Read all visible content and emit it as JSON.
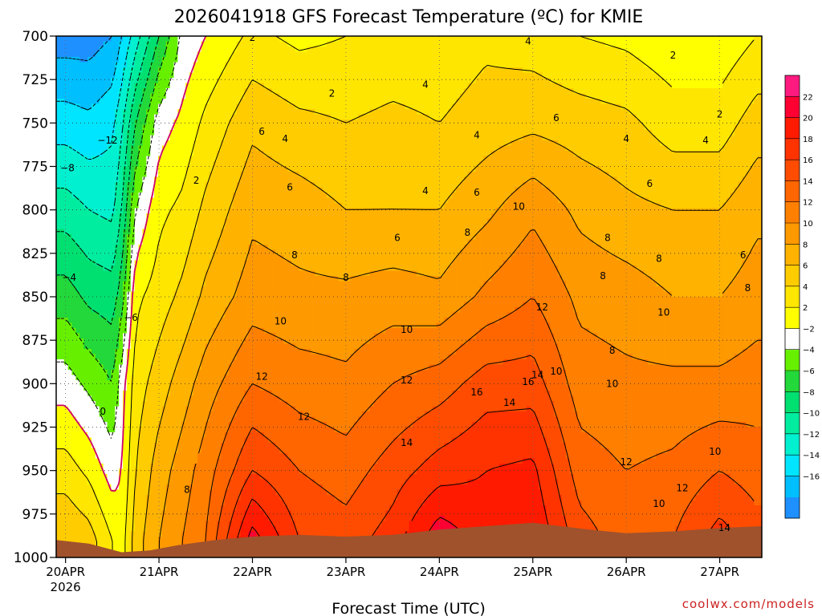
{
  "chart_data": {
    "type": "heatmap",
    "title": "2026041918 GFS Forecast Temperature (ºC) for KMIE",
    "xlabel": "Forecast Time (UTC)",
    "ylabel": "",
    "credit": "coolwx.com/models",
    "y_axis": {
      "unit": "hPa",
      "inverted": true,
      "range": [
        700,
        1000
      ],
      "ticks": [
        "700",
        "725",
        "750",
        "775",
        "800",
        "825",
        "850",
        "875",
        "900",
        "925",
        "950",
        "975",
        "1000"
      ]
    },
    "x_axis": {
      "ticks": [
        "20APR",
        "21APR",
        "22APR",
        "23APR",
        "24APR",
        "25APR",
        "26APR",
        "27APR"
      ],
      "start_year": "2026",
      "range_days": [
        -0.1,
        7.45
      ]
    },
    "colorbar": {
      "levels": [
        -18,
        -16,
        -14,
        -12,
        -10,
        -8,
        -6,
        -4,
        -2,
        0,
        2,
        4,
        6,
        8,
        10,
        12,
        14,
        16,
        18,
        20,
        22,
        24
      ],
      "labels": [
        "22",
        "20",
        "18",
        "16",
        "14",
        "12",
        "10",
        "8",
        "6",
        "4",
        "2",
        "−2",
        "−4",
        "−6",
        "−8",
        "−10",
        "−12",
        "−14",
        "−16"
      ],
      "colors": [
        "#1e90ff",
        "#00bfff",
        "#00e5ff",
        "#00f0d0",
        "#00eda0",
        "#00e070",
        "#22d83a",
        "#66f000",
        "#ffffff",
        "#ffff00",
        "#ffe600",
        "#ffcc00",
        "#ffb300",
        "#ff9900",
        "#ff8000",
        "#ff6600",
        "#ff4c00",
        "#ff3300",
        "#ff1a00",
        "#ff0033",
        "#ff1a80"
      ]
    },
    "times_days": [
      0,
      0.25,
      0.5,
      0.6,
      0.75,
      1,
      1.25,
      1.5,
      2,
      2.5,
      3,
      3.5,
      4,
      4.5,
      5,
      5.5,
      6,
      6.5,
      7,
      7.4
    ],
    "temperature_profiles": [
      {
        "t": 0,
        "p": [
          700,
          750,
          800,
          850,
          900,
          950,
          990
        ],
        "temp": [
          -17,
          -13,
          -9,
          -5,
          -1,
          3,
          6
        ]
      },
      {
        "t": 0.25,
        "p": [
          700,
          750,
          800,
          850,
          900,
          950,
          990
        ],
        "temp": [
          -17,
          -13.5,
          -10,
          -6.5,
          -2.5,
          1.5,
          5
        ]
      },
      {
        "t": 0.5,
        "p": [
          700,
          750,
          800,
          850,
          900,
          950,
          990
        ],
        "temp": [
          -16,
          -12.5,
          -10.5,
          -7,
          -4,
          -1,
          2
        ]
      },
      {
        "t": 0.6,
        "p": [
          700,
          750,
          800,
          850,
          900,
          950,
          990
        ],
        "temp": [
          -14,
          -10.5,
          -8,
          -5,
          -1,
          0,
          1
        ]
      },
      {
        "t": 0.75,
        "p": [
          700,
          750,
          800,
          850,
          900,
          950,
          990
        ],
        "temp": [
          -11,
          -6,
          -2,
          1.5,
          3,
          4,
          5
        ]
      },
      {
        "t": 1,
        "p": [
          700,
          750,
          800,
          850,
          900,
          950,
          990
        ],
        "temp": [
          -6,
          -1,
          1.5,
          3,
          5,
          7,
          8
        ]
      },
      {
        "t": 1.25,
        "p": [
          700,
          750,
          800,
          850,
          900,
          950,
          990
        ],
        "temp": [
          -1.5,
          0.5,
          2.5,
          4.5,
          7,
          9,
          10
        ]
      },
      {
        "t": 1.5,
        "p": [
          700,
          750,
          800,
          850,
          900,
          950,
          990
        ],
        "temp": [
          0,
          2.5,
          4.5,
          6.5,
          9,
          11,
          12
        ]
      },
      {
        "t": 2,
        "p": [
          700,
          750,
          800,
          850,
          900,
          950,
          990
        ],
        "temp": [
          2.5,
          5.5,
          7.5,
          9,
          12,
          16,
          21
        ]
      },
      {
        "t": 2.5,
        "p": [
          700,
          750,
          800,
          850,
          900,
          950,
          990
        ],
        "temp": [
          1.5,
          4.5,
          7,
          8.5,
          11,
          14,
          16
        ]
      },
      {
        "t": 3,
        "p": [
          700,
          750,
          800,
          850,
          900,
          950,
          990
        ],
        "temp": [
          2,
          4,
          6,
          8.5,
          10.5,
          13,
          15
        ]
      },
      {
        "t": 3.5,
        "p": [
          700,
          750,
          800,
          850,
          900,
          950,
          990
        ],
        "temp": [
          2.5,
          4.5,
          6,
          9,
          12,
          15,
          17
        ]
      },
      {
        "t": 4,
        "p": [
          700,
          750,
          800,
          850,
          900,
          950,
          990
        ],
        "temp": [
          2.5,
          4,
          6,
          8.5,
          13,
          17,
          21.5
        ]
      },
      {
        "t": 4.5,
        "p": [
          700,
          750,
          800,
          850,
          900,
          950,
          990
        ],
        "temp": [
          3.5,
          5,
          7.5,
          10.5,
          15,
          18,
          19
        ]
      },
      {
        "t": 5,
        "p": [
          700,
          750,
          800,
          850,
          900,
          950,
          990
        ],
        "temp": [
          3,
          5.5,
          9.5,
          12,
          15,
          18.5,
          20
        ]
      },
      {
        "t": 5.5,
        "p": [
          700,
          750,
          800,
          850,
          900,
          950,
          990
        ],
        "temp": [
          2,
          5,
          7.5,
          9.5,
          11,
          13,
          15
        ]
      },
      {
        "t": 6,
        "p": [
          700,
          750,
          800,
          850,
          900,
          950,
          990
        ],
        "temp": [
          1.5,
          4.5,
          6.5,
          9,
          10.5,
          12,
          13
        ]
      },
      {
        "t": 6.5,
        "p": [
          700,
          750,
          800,
          850,
          900,
          950,
          990
        ],
        "temp": [
          0.5,
          3,
          6,
          8,
          10.5,
          12.5,
          14
        ]
      },
      {
        "t": 7,
        "p": [
          700,
          750,
          800,
          850,
          900,
          950,
          990
        ],
        "temp": [
          0.5,
          3,
          6,
          8,
          10.5,
          14,
          17
        ]
      },
      {
        "t": 7.4,
        "p": [
          700,
          750,
          800,
          850,
          900,
          950,
          990
        ],
        "temp": [
          2,
          5,
          7.5,
          9,
          11,
          13,
          15
        ]
      }
    ],
    "contour_levels_drawn": [
      -16,
      -14,
      -12,
      -10,
      -8,
      -6,
      -4,
      -2,
      0,
      2,
      4,
      6,
      8,
      10,
      12,
      14,
      16,
      18,
      20
    ],
    "contour_labels": [
      {
        "text": "2",
        "t": 2.0,
        "p": 701
      },
      {
        "text": "4",
        "t": 4.95,
        "p": 703
      },
      {
        "text": "2",
        "t": 6.5,
        "p": 711
      },
      {
        "text": "2",
        "t": 2.85,
        "p": 733
      },
      {
        "text": "4",
        "t": 3.85,
        "p": 728
      },
      {
        "text": "2",
        "t": 7.0,
        "p": 745
      },
      {
        "text": "−12",
        "t": 0.45,
        "p": 760
      },
      {
        "text": "6",
        "t": 2.1,
        "p": 755
      },
      {
        "text": "4",
        "t": 2.35,
        "p": 759
      },
      {
        "text": "4",
        "t": 4.4,
        "p": 757
      },
      {
        "text": "6",
        "t": 5.25,
        "p": 747
      },
      {
        "text": "4",
        "t": 6.0,
        "p": 759
      },
      {
        "text": "4",
        "t": 6.85,
        "p": 760
      },
      {
        "text": "−8",
        "t": 0.02,
        "p": 776
      },
      {
        "text": "2",
        "t": 1.4,
        "p": 783
      },
      {
        "text": "6",
        "t": 2.4,
        "p": 787
      },
      {
        "text": "4",
        "t": 3.85,
        "p": 789
      },
      {
        "text": "6",
        "t": 4.4,
        "p": 790
      },
      {
        "text": "6",
        "t": 6.25,
        "p": 785
      },
      {
        "text": "10",
        "t": 4.85,
        "p": 798
      },
      {
        "text": "8",
        "t": 4.3,
        "p": 813
      },
      {
        "text": "6",
        "t": 3.55,
        "p": 816
      },
      {
        "text": "8",
        "t": 5.8,
        "p": 816
      },
      {
        "text": "8",
        "t": 2.45,
        "p": 826
      },
      {
        "text": "8",
        "t": 6.35,
        "p": 828
      },
      {
        "text": "6",
        "t": 7.25,
        "p": 826
      },
      {
        "text": "−4",
        "t": 0.04,
        "p": 839
      },
      {
        "text": "8",
        "t": 3.0,
        "p": 839
      },
      {
        "text": "8",
        "t": 5.75,
        "p": 838
      },
      {
        "text": "8",
        "t": 7.3,
        "p": 845
      },
      {
        "text": "−6",
        "t": 0.7,
        "p": 862
      },
      {
        "text": "10",
        "t": 2.3,
        "p": 864
      },
      {
        "text": "12",
        "t": 5.1,
        "p": 856
      },
      {
        "text": "10",
        "t": 6.4,
        "p": 859
      },
      {
        "text": "10",
        "t": 3.65,
        "p": 869
      },
      {
        "text": "8",
        "t": 5.85,
        "p": 881
      },
      {
        "text": "12",
        "t": 2.1,
        "p": 896
      },
      {
        "text": "12",
        "t": 3.65,
        "p": 898
      },
      {
        "text": "16",
        "t": 4.4,
        "p": 905
      },
      {
        "text": "16",
        "t": 4.95,
        "p": 899
      },
      {
        "text": "14",
        "t": 5.05,
        "p": 895
      },
      {
        "text": "10",
        "t": 5.25,
        "p": 893
      },
      {
        "text": "10",
        "t": 5.85,
        "p": 900
      },
      {
        "text": "0",
        "t": 0.4,
        "p": 916
      },
      {
        "text": "12",
        "t": 2.55,
        "p": 919
      },
      {
        "text": "14",
        "t": 4.75,
        "p": 911
      },
      {
        "text": "14",
        "t": 3.65,
        "p": 934
      },
      {
        "text": "10",
        "t": 6.95,
        "p": 939
      },
      {
        "text": "12",
        "t": 6.0,
        "p": 945
      },
      {
        "text": "8",
        "t": 1.3,
        "p": 961
      },
      {
        "text": "12",
        "t": 6.6,
        "p": 960
      },
      {
        "text": "10",
        "t": 6.35,
        "p": 969
      },
      {
        "text": "14",
        "t": 7.05,
        "p": 983
      }
    ],
    "freezing_contour_color": "#cc0066",
    "terrain": {
      "color": "#a0522d",
      "points": [
        [
          -0.1,
          990
        ],
        [
          0.25,
          992
        ],
        [
          0.6,
          997
        ],
        [
          0.9,
          996
        ],
        [
          1.2,
          993
        ],
        [
          1.6,
          990
        ],
        [
          2.0,
          988
        ],
        [
          2.5,
          987
        ],
        [
          3.0,
          988
        ],
        [
          3.5,
          987
        ],
        [
          4.0,
          984
        ],
        [
          4.5,
          982
        ],
        [
          5.0,
          980
        ],
        [
          5.3,
          982
        ],
        [
          5.6,
          984
        ],
        [
          6.0,
          986
        ],
        [
          6.5,
          985
        ],
        [
          7.0,
          983
        ],
        [
          7.45,
          982
        ]
      ]
    }
  }
}
